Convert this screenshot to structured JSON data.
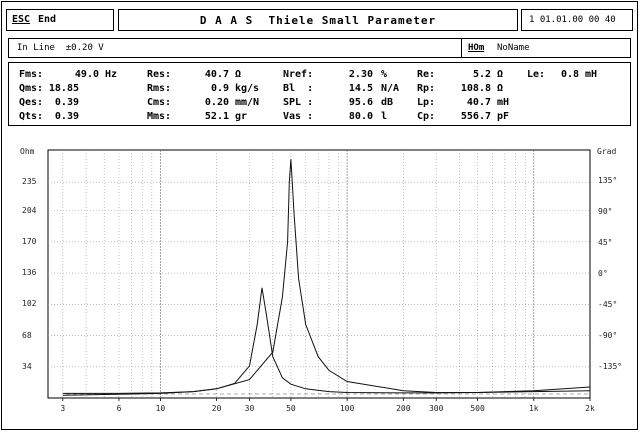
{
  "header": {
    "esc_label": "ESC",
    "end_label": "End",
    "title": "D A A S  Thiele Small Parameter",
    "datetime": "1 01.01.00 00 40"
  },
  "info": {
    "input_line": "In Line  ±0.20 V",
    "hom_label": "HOm",
    "name": "NoName"
  },
  "params": [
    [
      {
        "k": "Fms:",
        "v": "49.0",
        "u": "Hz"
      },
      {
        "k": "Res:",
        "v": "40.7",
        "u": "Ω"
      },
      {
        "k": "Nref:",
        "v": "2.30",
        "u": "%"
      },
      {
        "k": "Re:",
        "v": "5.2",
        "u": "Ω"
      },
      {
        "k": "Le:",
        "v": "0.8",
        "u": "mH"
      }
    ],
    [
      {
        "k": "Qms:",
        "v": "18.85",
        "u": ""
      },
      {
        "k": "Rms:",
        "v": "0.9",
        "u": "kg/s"
      },
      {
        "k": "Bl  :",
        "v": "14.5",
        "u": "N/A"
      },
      {
        "k": "Rp:",
        "v": "108.8",
        "u": "Ω"
      }
    ],
    [
      {
        "k": "Qes:",
        "v": "0.39",
        "u": ""
      },
      {
        "k": "Cms:",
        "v": "0.20",
        "u": "mm/N"
      },
      {
        "k": "SPL :",
        "v": "95.6",
        "u": "dB"
      },
      {
        "k": "Lp:",
        "v": "40.7",
        "u": "mH"
      }
    ],
    [
      {
        "k": "Qts:",
        "v": "0.39",
        "u": ""
      },
      {
        "k": "Mms:",
        "v": "52.1",
        "u": "gr"
      },
      {
        "k": "Vas :",
        "v": "80.0",
        "u": "l"
      },
      {
        "k": "Cp:",
        "v": "556.7",
        "u": "pF"
      }
    ]
  ],
  "chart_data": {
    "type": "line",
    "x_scale": "log",
    "xlim": [
      2.5,
      2000
    ],
    "x_ticks": [
      "3",
      "6",
      "10",
      "20",
      "30",
      "50",
      "100",
      "200",
      "300",
      "500",
      "1k",
      "2k"
    ],
    "x_tick_values": [
      3,
      6,
      10,
      20,
      30,
      50,
      100,
      200,
      300,
      500,
      1000,
      2000
    ],
    "y_left_unit": "Ohm",
    "y_left_ticks": [
      "235",
      "204",
      "170",
      "136",
      "102",
      "68",
      "34"
    ],
    "y_left_values": [
      235,
      204,
      170,
      136,
      102,
      68,
      34
    ],
    "y_left_range": [
      0,
      270
    ],
    "y_right_unit": "Grad",
    "y_right_ticks": [
      "135°",
      "90°",
      "45°",
      "0°",
      "-45°",
      "-90°",
      "-135°"
    ],
    "y_right_values": [
      135,
      90,
      45,
      0,
      -45,
      -90,
      -135
    ],
    "y_right_range": [
      -180,
      180
    ],
    "grid": true,
    "series": [
      {
        "x": [
          3,
          6,
          10,
          15,
          20,
          25,
          30,
          33,
          35,
          37,
          40,
          45,
          50,
          60,
          80,
          100,
          200,
          300,
          500,
          1000,
          2000
        ],
        "y": [
          5,
          5,
          5.5,
          7,
          10,
          16,
          35,
          80,
          120,
          90,
          45,
          22,
          15,
          10,
          7,
          6,
          5.5,
          5.5,
          6,
          7,
          8
        ],
        "y_axis": "left"
      },
      {
        "x": [
          3,
          6,
          10,
          15,
          20,
          30,
          40,
          45,
          48,
          49,
          50,
          52,
          55,
          60,
          70,
          80,
          100,
          200,
          300,
          500,
          1000,
          2000
        ],
        "y": [
          3,
          4,
          5,
          7,
          10,
          20,
          50,
          110,
          170,
          235,
          260,
          200,
          130,
          80,
          45,
          30,
          18,
          8,
          6,
          6,
          8,
          12
        ],
        "y_axis": "left"
      }
    ]
  }
}
